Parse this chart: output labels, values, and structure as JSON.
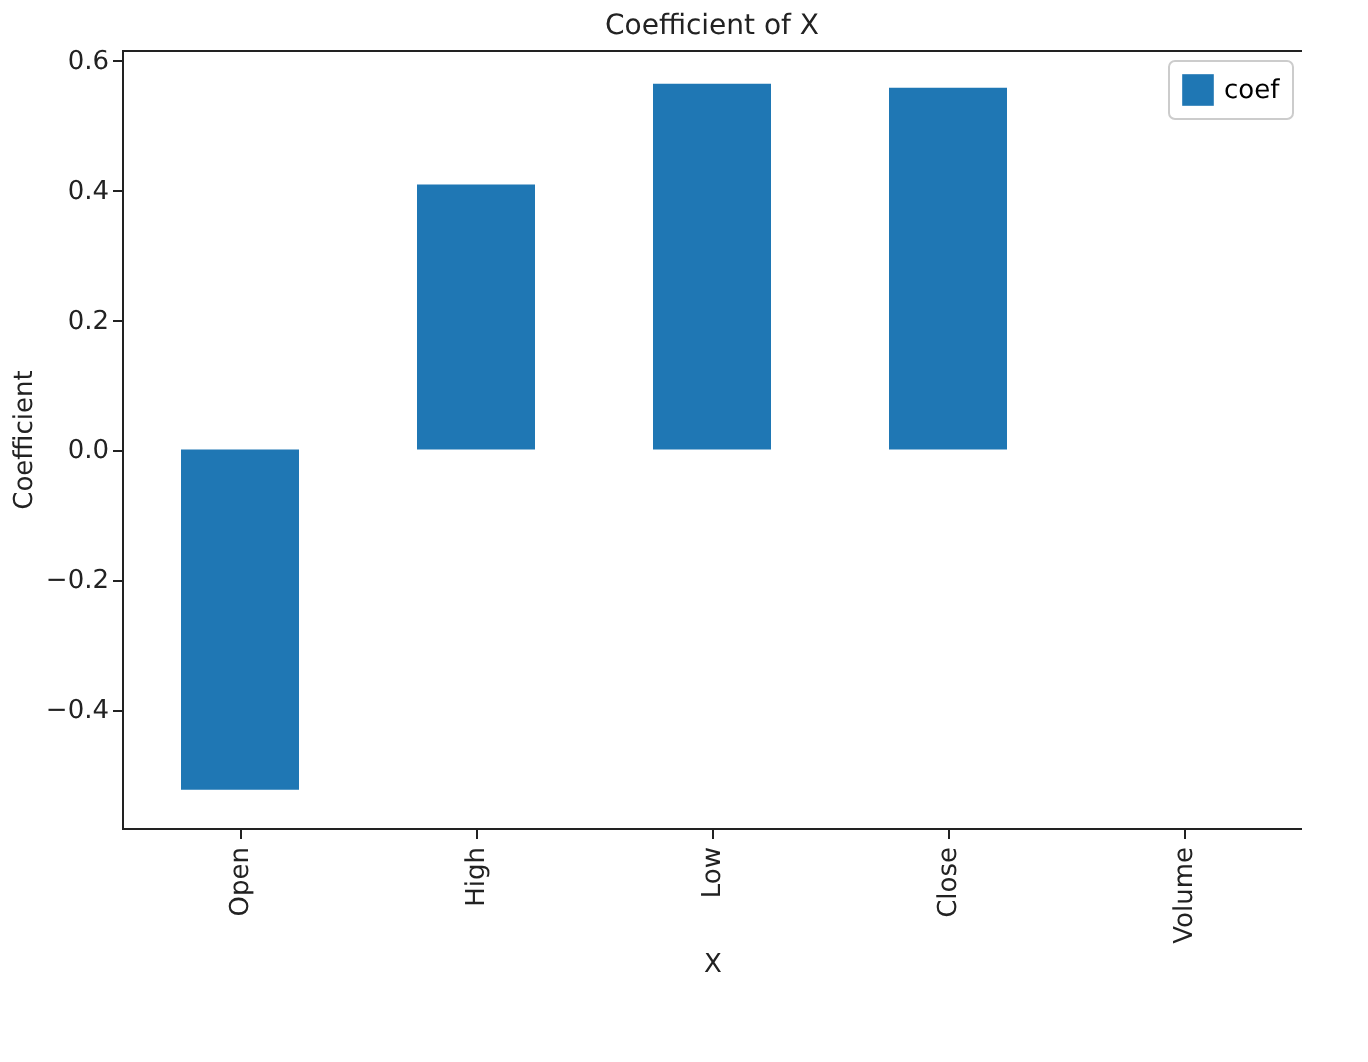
{
  "chart_data": {
    "type": "bar",
    "title": "Coefficient of X",
    "xlabel": "X",
    "ylabel": "Coefficient",
    "categories": [
      "Open",
      "High",
      "Low",
      "Close",
      "Volume"
    ],
    "series": [
      {
        "name": "coef",
        "color": "#1f77b4",
        "values": [
          -0.524,
          0.408,
          0.563,
          0.557,
          0.0
        ]
      }
    ],
    "ylim": [
      -0.583,
      0.615
    ],
    "yticks": [
      -0.4,
      -0.2,
      {
        "value": 0,
        "label": "0.0"
      },
      0.2,
      0.4,
      0.6
    ],
    "grid": false,
    "legend": "top right"
  }
}
